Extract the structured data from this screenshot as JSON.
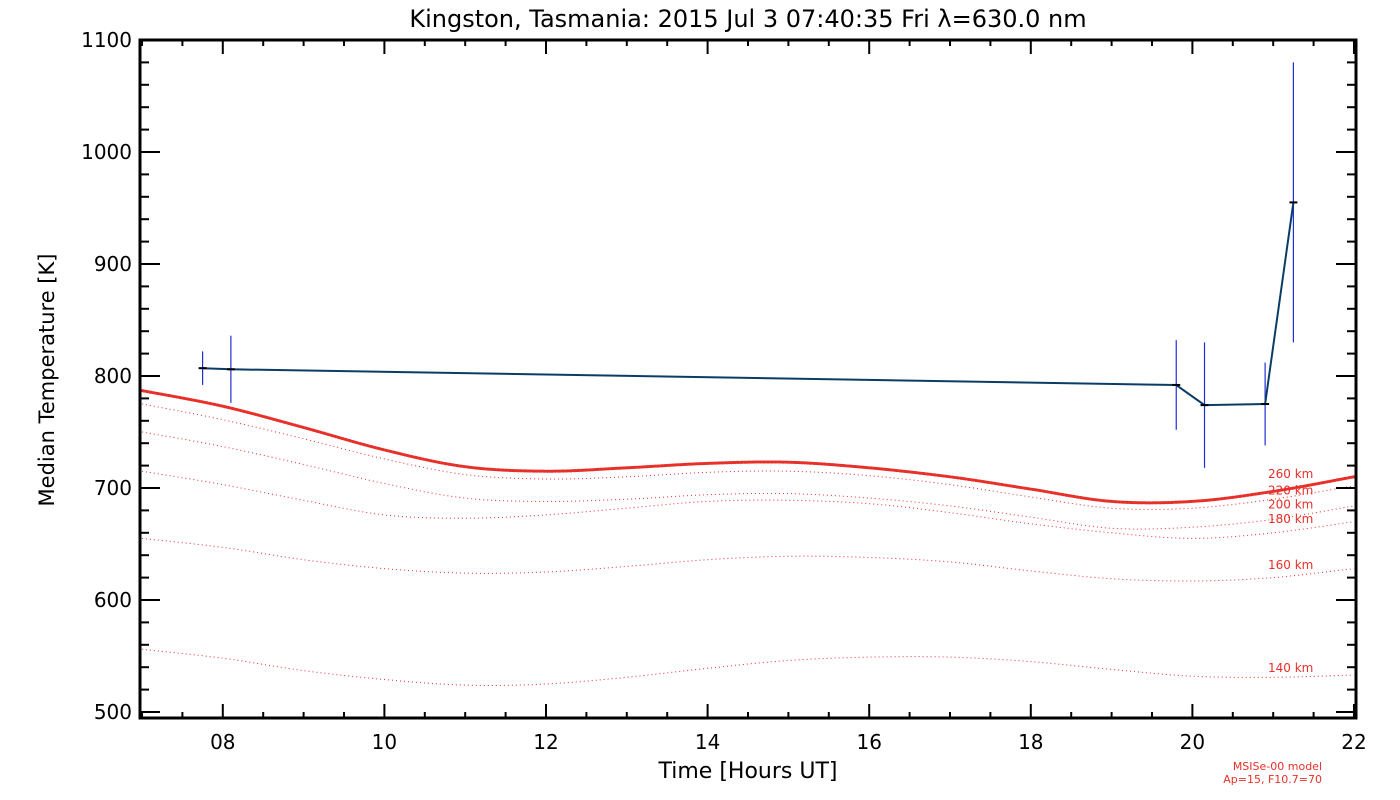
{
  "chart_data": {
    "type": "line",
    "title": "Kingston, Tasmania: 2015 Jul  3 07:40:35 Fri λ=630.0 nm",
    "xlabel": "Time [Hours UT]",
    "ylabel": "Median Temperature [K]",
    "xlim": [
      7,
      22
    ],
    "ylim": [
      500,
      1100
    ],
    "x_ticks": [
      8,
      10,
      12,
      14,
      16,
      18,
      20,
      22
    ],
    "x_tick_labels": [
      "08",
      "10",
      "12",
      "14",
      "16",
      "18",
      "20",
      "22"
    ],
    "y_ticks": [
      500,
      600,
      700,
      800,
      900,
      1000,
      1100
    ],
    "y_tick_labels": [
      "500",
      "600",
      "700",
      "800",
      "900",
      "1000",
      "1100"
    ],
    "grid": false,
    "colors": {
      "measured": "#0a3d66",
      "errorbar": "#1f2fd6",
      "model": "#e8302a"
    },
    "measured": {
      "points": [
        {
          "x": 7.75,
          "y": 807,
          "err": 15
        },
        {
          "x": 8.1,
          "y": 806,
          "err": 30
        },
        {
          "x": 19.8,
          "y": 792,
          "err": 40
        },
        {
          "x": 20.15,
          "y": 774,
          "err": 56
        },
        {
          "x": 20.9,
          "y": 775,
          "err": 37
        },
        {
          "x": 21.25,
          "y": 955,
          "err": 125
        }
      ]
    },
    "model_series": [
      {
        "label": "260 km",
        "highlight": true,
        "x": [
          7,
          8,
          9,
          10,
          11,
          12,
          13,
          14,
          15,
          16,
          17,
          18,
          19,
          20,
          21,
          22
        ],
        "y": [
          787,
          773,
          754,
          734,
          719,
          715,
          718,
          722,
          723,
          718,
          710,
          699,
          688,
          688,
          697,
          710
        ]
      },
      {
        "label": "220 km",
        "x": [
          7,
          8,
          9,
          10,
          11,
          12,
          13,
          14,
          15,
          16,
          17,
          18,
          19,
          20,
          21,
          22
        ],
        "y": [
          775,
          761,
          744,
          726,
          712,
          708,
          710,
          714,
          715,
          711,
          703,
          692,
          682,
          682,
          690,
          702
        ]
      },
      {
        "label": "200 km",
        "x": [
          7,
          8,
          9,
          10,
          11,
          12,
          13,
          14,
          15,
          16,
          17,
          18,
          19,
          20,
          21,
          22
        ],
        "y": [
          750,
          737,
          721,
          704,
          691,
          688,
          690,
          694,
          695,
          691,
          684,
          674,
          664,
          665,
          672,
          684
        ]
      },
      {
        "label": "180 km",
        "x": [
          7,
          8,
          9,
          10,
          11,
          12,
          13,
          14,
          15,
          16,
          17,
          18,
          19,
          20,
          21,
          22
        ],
        "y": [
          715,
          703,
          689,
          676,
          673,
          676,
          682,
          688,
          689,
          686,
          678,
          668,
          660,
          655,
          660,
          670
        ]
      },
      {
        "label": "160 km",
        "x": [
          7,
          8,
          9,
          10,
          11,
          12,
          13,
          14,
          15,
          16,
          17,
          18,
          19,
          20,
          21,
          22
        ],
        "y": [
          655,
          647,
          636,
          628,
          624,
          625,
          630,
          636,
          639,
          638,
          634,
          626,
          619,
          617,
          620,
          628
        ]
      },
      {
        "label": "140 km",
        "x": [
          7,
          8,
          9,
          10,
          11,
          12,
          13,
          14,
          15,
          16,
          17,
          18,
          19,
          20,
          21,
          22
        ],
        "y": [
          556,
          548,
          537,
          529,
          524,
          525,
          531,
          539,
          546,
          549,
          549,
          545,
          538,
          532,
          531,
          533
        ]
      }
    ],
    "model_note": [
      "MSISe-00 model",
      "Ap=15, F10.7=70"
    ]
  }
}
